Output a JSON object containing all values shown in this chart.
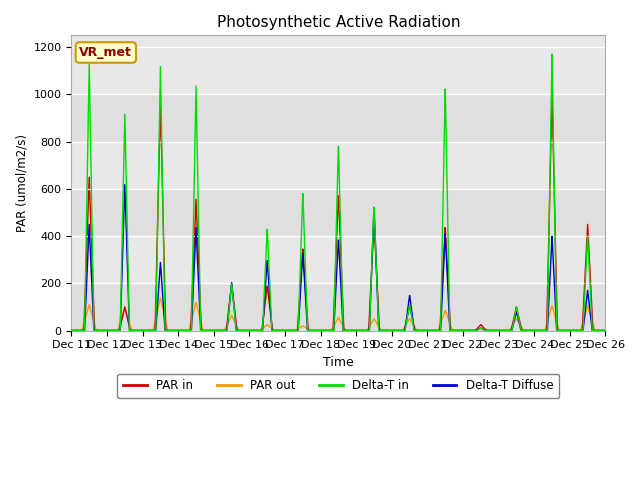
{
  "title": "Photosynthetic Active Radiation",
  "ylabel": "PAR (umol/m2/s)",
  "xlabel": "Time",
  "annotation": "VR_met",
  "ylim": [
    0,
    1250
  ],
  "xlim_days": [
    11,
    26
  ],
  "background_color": "#e8e8e8",
  "series_colors": {
    "PAR_in": "#cc0000",
    "PAR_out": "#ff9900",
    "Delta_T_in": "#00dd00",
    "Delta_T_Diffuse": "#0000cc"
  },
  "legend_labels": [
    "PAR in",
    "PAR out",
    "Delta-T in",
    "Delta-T Diffuse"
  ],
  "tick_labels": [
    "Dec 11",
    "Dec 12",
    "Dec 13",
    "Dec 14",
    "Dec 15",
    "Dec 16",
    "Dec 17",
    "Dec 18",
    "Dec 19",
    "Dec 20",
    "Dec 21",
    "Dec 22",
    "Dec 23",
    "Dec 24",
    "Dec 25",
    "Dec 26"
  ],
  "par_in_peaks": [
    650,
    100,
    970,
    560,
    200,
    190,
    350,
    580,
    460,
    105,
    440,
    25,
    100,
    1005,
    450
  ],
  "par_out_peaks": [
    110,
    100,
    140,
    120,
    65,
    25,
    20,
    55,
    50,
    50,
    85,
    10,
    50,
    105,
    105
  ],
  "delta_t_in_peaks": [
    1130,
    920,
    1125,
    1045,
    200,
    435,
    590,
    795,
    530,
    110,
    1035,
    10,
    100,
    1175,
    400
  ],
  "delta_t_diff_peaks": [
    450,
    620,
    290,
    440,
    205,
    300,
    330,
    390,
    530,
    150,
    415,
    10,
    80,
    400,
    170
  ],
  "peak_days": [
    11,
    12,
    13,
    14,
    15,
    16,
    17,
    18,
    19,
    20,
    21,
    22,
    23,
    24,
    25
  ]
}
